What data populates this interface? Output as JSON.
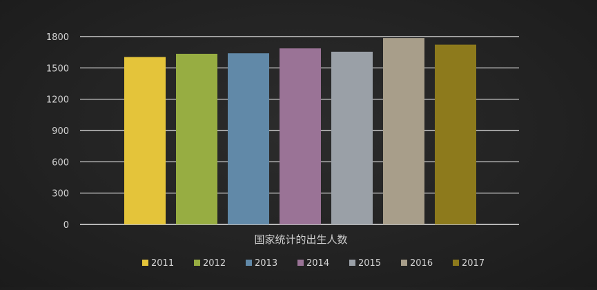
{
  "chart_data": {
    "type": "bar",
    "categories": [
      "2011",
      "2012",
      "2013",
      "2014",
      "2015",
      "2016",
      "2017"
    ],
    "values": [
      1604,
      1635,
      1640,
      1687,
      1655,
      1786,
      1723
    ],
    "colors": [
      "#e4c43a",
      "#97ad42",
      "#6189a8",
      "#9a7396",
      "#9aa0a7",
      "#a89e8a",
      "#8d7a1c"
    ],
    "xlabel": "国家统计的出生人数",
    "ylabel": "",
    "ylim": [
      0,
      1800
    ],
    "yticks": [
      0,
      300,
      600,
      900,
      1200,
      1500,
      1800
    ],
    "grid": true,
    "legend": "bottom",
    "gridline_color": "#e8e8e8"
  }
}
